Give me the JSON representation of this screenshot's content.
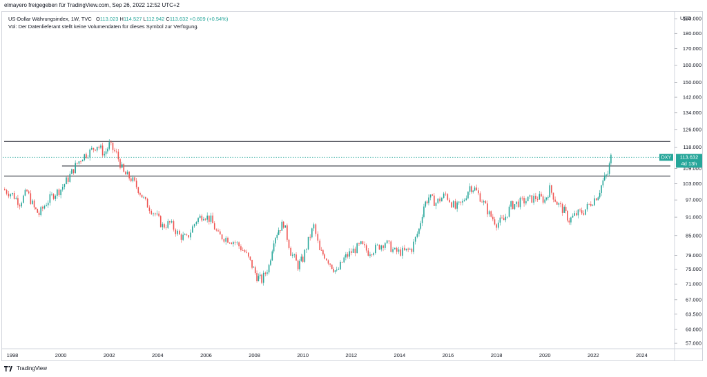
{
  "header": {
    "shared_by": "elmayero freigegeben für TradingView.com, Sep 26, 2022 12:52 UTC+2"
  },
  "legend": {
    "symbol": "US-Dollar Währungsindex, 1W, TVC",
    "o_label": "O",
    "o_value": "113.023",
    "h_label": "H",
    "h_value": "114.527",
    "l_label": "L",
    "l_value": "112.942",
    "c_label": "C",
    "c_value": "113.632",
    "change": "+0.609 (+0.54%)",
    "volume_note": "Vol: Der Datenlieferant stellt keine Volumendaten für dieses Symbol zur Verfügung."
  },
  "price_axis": {
    "currency": "USD",
    "ticks": [
      "190.000",
      "180.000",
      "170.000",
      "160.000",
      "150.000",
      "142.000",
      "134.000",
      "126.000",
      "118.000",
      "109.000",
      "103.000",
      "97.000",
      "91.000",
      "85.000",
      "79.000",
      "75.000",
      "71.000",
      "67.000",
      "63.500",
      "60.000",
      "57.000"
    ]
  },
  "time_axis": {
    "ticks": [
      "1998",
      "2000",
      "2002",
      "2004",
      "2006",
      "2008",
      "2010",
      "2012",
      "2014",
      "2016",
      "2018",
      "2020",
      "2022",
      "2024"
    ]
  },
  "price_marker": {
    "symbol": "DXY",
    "price": "113.632",
    "countdown": "4d 13h"
  },
  "footer": {
    "brand": "TradingView"
  },
  "colors": {
    "up": "#26a69a",
    "down": "#ef5350",
    "lines": "#131722",
    "price_line": "#26a69a"
  },
  "chart_data": {
    "type": "candlestick",
    "title": "US-Dollar Währungsindex, 1W, TVC",
    "log_scale": true,
    "ylim": [
      56,
      195
    ],
    "xlim": [
      1997.6,
      2025.3
    ],
    "horizontal_levels": [
      120.5,
      110.0,
      106.0
    ],
    "last_price": 113.632,
    "series": [
      {
        "x": 1997.6,
        "y": 101
      },
      {
        "x": 1998.0,
        "y": 99
      },
      {
        "x": 1998.3,
        "y": 96
      },
      {
        "x": 1998.6,
        "y": 100
      },
      {
        "x": 1998.9,
        "y": 94
      },
      {
        "x": 1999.1,
        "y": 92
      },
      {
        "x": 1999.4,
        "y": 96
      },
      {
        "x": 1999.7,
        "y": 99
      },
      {
        "x": 2000.0,
        "y": 101
      },
      {
        "x": 2000.3,
        "y": 105
      },
      {
        "x": 2000.6,
        "y": 110
      },
      {
        "x": 2000.9,
        "y": 114
      },
      {
        "x": 2001.2,
        "y": 116
      },
      {
        "x": 2001.5,
        "y": 119
      },
      {
        "x": 2001.8,
        "y": 115
      },
      {
        "x": 2002.0,
        "y": 119
      },
      {
        "x": 2002.3,
        "y": 115
      },
      {
        "x": 2002.6,
        "y": 107
      },
      {
        "x": 2002.9,
        "y": 105
      },
      {
        "x": 2003.2,
        "y": 101
      },
      {
        "x": 2003.5,
        "y": 96
      },
      {
        "x": 2003.9,
        "y": 92
      },
      {
        "x": 2004.2,
        "y": 88
      },
      {
        "x": 2004.5,
        "y": 89
      },
      {
        "x": 2004.9,
        "y": 85
      },
      {
        "x": 2005.2,
        "y": 84
      },
      {
        "x": 2005.6,
        "y": 90
      },
      {
        "x": 2005.9,
        "y": 92
      },
      {
        "x": 2006.2,
        "y": 90
      },
      {
        "x": 2006.5,
        "y": 85
      },
      {
        "x": 2006.9,
        "y": 84
      },
      {
        "x": 2007.2,
        "y": 83
      },
      {
        "x": 2007.6,
        "y": 80
      },
      {
        "x": 2007.9,
        "y": 76
      },
      {
        "x": 2008.1,
        "y": 73
      },
      {
        "x": 2008.3,
        "y": 72
      },
      {
        "x": 2008.6,
        "y": 76
      },
      {
        "x": 2008.8,
        "y": 84
      },
      {
        "x": 2009.0,
        "y": 87
      },
      {
        "x": 2009.2,
        "y": 89
      },
      {
        "x": 2009.5,
        "y": 80
      },
      {
        "x": 2009.8,
        "y": 76
      },
      {
        "x": 2010.0,
        "y": 78
      },
      {
        "x": 2010.3,
        "y": 85
      },
      {
        "x": 2010.45,
        "y": 88
      },
      {
        "x": 2010.7,
        "y": 80
      },
      {
        "x": 2010.9,
        "y": 79
      },
      {
        "x": 2011.2,
        "y": 76
      },
      {
        "x": 2011.4,
        "y": 74
      },
      {
        "x": 2011.7,
        "y": 78
      },
      {
        "x": 2012.0,
        "y": 80
      },
      {
        "x": 2012.4,
        "y": 82
      },
      {
        "x": 2012.7,
        "y": 80
      },
      {
        "x": 2013.0,
        "y": 81
      },
      {
        "x": 2013.4,
        "y": 83
      },
      {
        "x": 2013.8,
        "y": 80
      },
      {
        "x": 2014.2,
        "y": 80
      },
      {
        "x": 2014.5,
        "y": 81
      },
      {
        "x": 2014.8,
        "y": 87
      },
      {
        "x": 2015.0,
        "y": 95
      },
      {
        "x": 2015.2,
        "y": 98
      },
      {
        "x": 2015.5,
        "y": 96
      },
      {
        "x": 2015.9,
        "y": 99
      },
      {
        "x": 2016.3,
        "y": 94
      },
      {
        "x": 2016.6,
        "y": 96
      },
      {
        "x": 2016.9,
        "y": 102
      },
      {
        "x": 2017.1,
        "y": 101
      },
      {
        "x": 2017.4,
        "y": 97
      },
      {
        "x": 2017.7,
        "y": 92
      },
      {
        "x": 2018.0,
        "y": 89
      },
      {
        "x": 2018.3,
        "y": 90
      },
      {
        "x": 2018.6,
        "y": 95
      },
      {
        "x": 2018.9,
        "y": 96
      },
      {
        "x": 2019.3,
        "y": 97
      },
      {
        "x": 2019.7,
        "y": 98
      },
      {
        "x": 2020.0,
        "y": 97
      },
      {
        "x": 2020.2,
        "y": 101
      },
      {
        "x": 2020.5,
        "y": 96
      },
      {
        "x": 2020.8,
        "y": 93
      },
      {
        "x": 2021.0,
        "y": 90
      },
      {
        "x": 2021.3,
        "y": 92
      },
      {
        "x": 2021.6,
        "y": 93
      },
      {
        "x": 2021.9,
        "y": 96
      },
      {
        "x": 2022.2,
        "y": 99
      },
      {
        "x": 2022.4,
        "y": 104
      },
      {
        "x": 2022.6,
        "y": 107
      },
      {
        "x": 2022.73,
        "y": 113.632
      }
    ]
  }
}
